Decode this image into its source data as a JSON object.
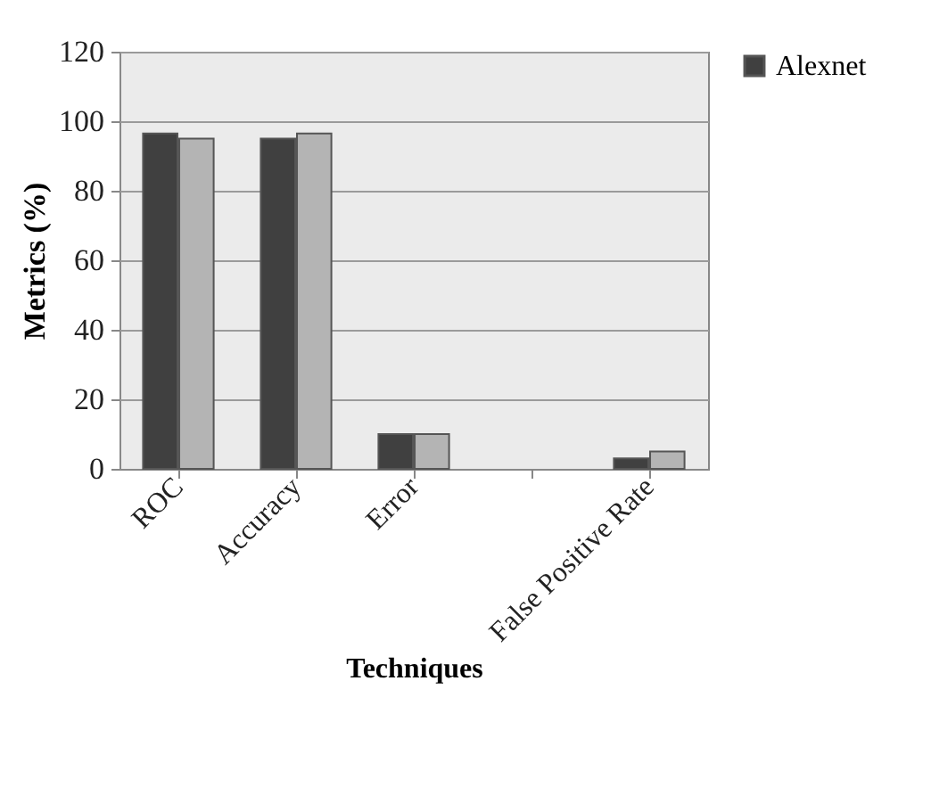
{
  "chart_data": {
    "type": "bar",
    "xlabel": "Techniques",
    "ylabel": "Metrics (%)",
    "categories": [
      "ROC",
      "Accuracy",
      "Error",
      null,
      "False Positive Rate"
    ],
    "series": [
      {
        "name": "Alexnet",
        "color": "#404040",
        "values": [
          96.5,
          95,
          10,
          null,
          3
        ]
      },
      {
        "color": "#b4b4b4",
        "values": [
          95,
          96.5,
          10,
          null,
          5
        ]
      }
    ],
    "ylim": [
      0,
      120
    ],
    "yticks": [
      0,
      20,
      40,
      60,
      80,
      100,
      120
    ],
    "grid": "y",
    "legend": "right"
  }
}
